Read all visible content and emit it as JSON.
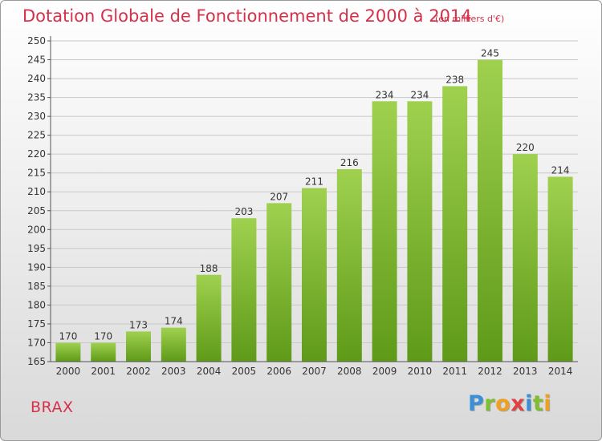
{
  "header": {
    "title": "Dotation Globale de Fonctionnement de 2000 à 2014",
    "unit": "(en milliers d'€)"
  },
  "footer": {
    "place": "BRAX",
    "logo": "Proxiti",
    "logo_colors": [
      "#3a8fd6",
      "#7fbe2e",
      "#f0a020",
      "#e04040",
      "#3a8fd6",
      "#7fbe2e",
      "#f0a020"
    ]
  },
  "colors": {
    "title": "#d6304a",
    "bar_top": "#9fd14f",
    "bar_bottom": "#5e9a18",
    "axis": "#555555",
    "grid": "#c8c8c8"
  },
  "chart_data": {
    "type": "bar",
    "title": "Dotation Globale de Fonctionnement de 2000 à 2014",
    "subtitle": "(en milliers d'€)",
    "xlabel": "",
    "ylabel": "",
    "categories": [
      "2000",
      "2001",
      "2002",
      "2003",
      "2004",
      "2005",
      "2006",
      "2007",
      "2008",
      "2009",
      "2010",
      "2011",
      "2012",
      "2013",
      "2014"
    ],
    "values": [
      170,
      170,
      173,
      174,
      188,
      203,
      207,
      211,
      216,
      234,
      234,
      238,
      245,
      220,
      214
    ],
    "ylim": [
      165,
      250
    ],
    "ytick_step": 5,
    "grid": true,
    "data_labels": true,
    "legend": "none"
  }
}
